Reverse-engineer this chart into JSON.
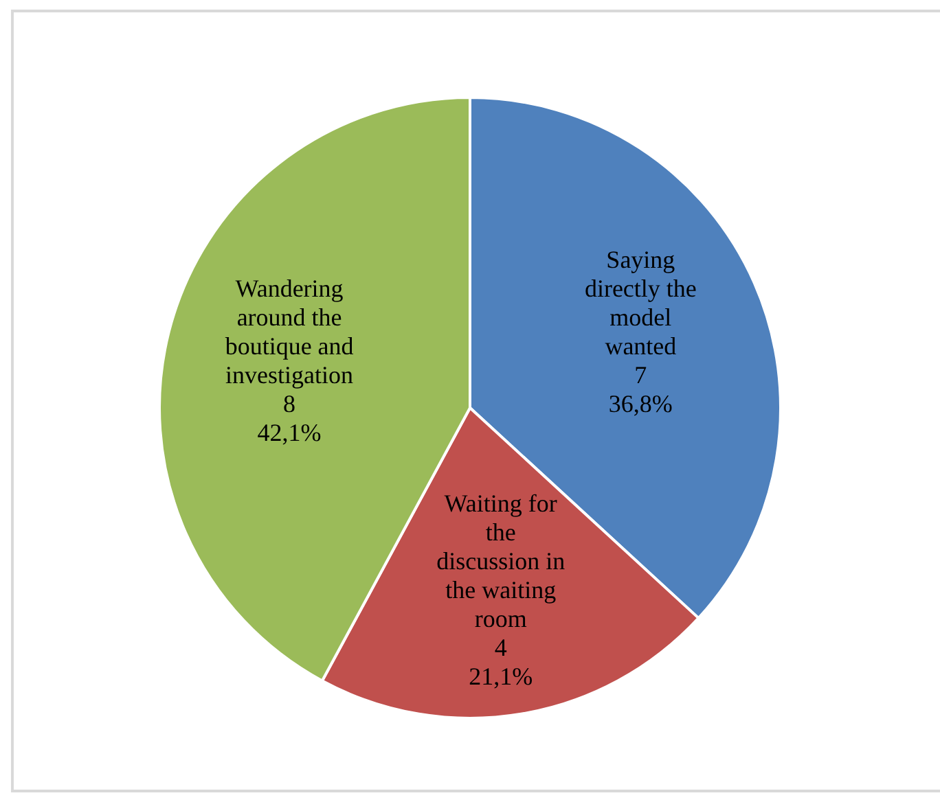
{
  "chart_data": {
    "type": "pie",
    "categories": [
      "Saying directly the model wanted",
      "Waiting for the discussion in the waiting room",
      "Wandering around the boutique and investigation"
    ],
    "values": [
      7,
      4,
      8
    ],
    "colors": [
      "#4f81bd",
      "#c0504d",
      "#9bbb59"
    ],
    "value_labels": [
      "7\n36,8%",
      "4\n21,1%",
      "8\n42,1%"
    ],
    "legend": false
  }
}
